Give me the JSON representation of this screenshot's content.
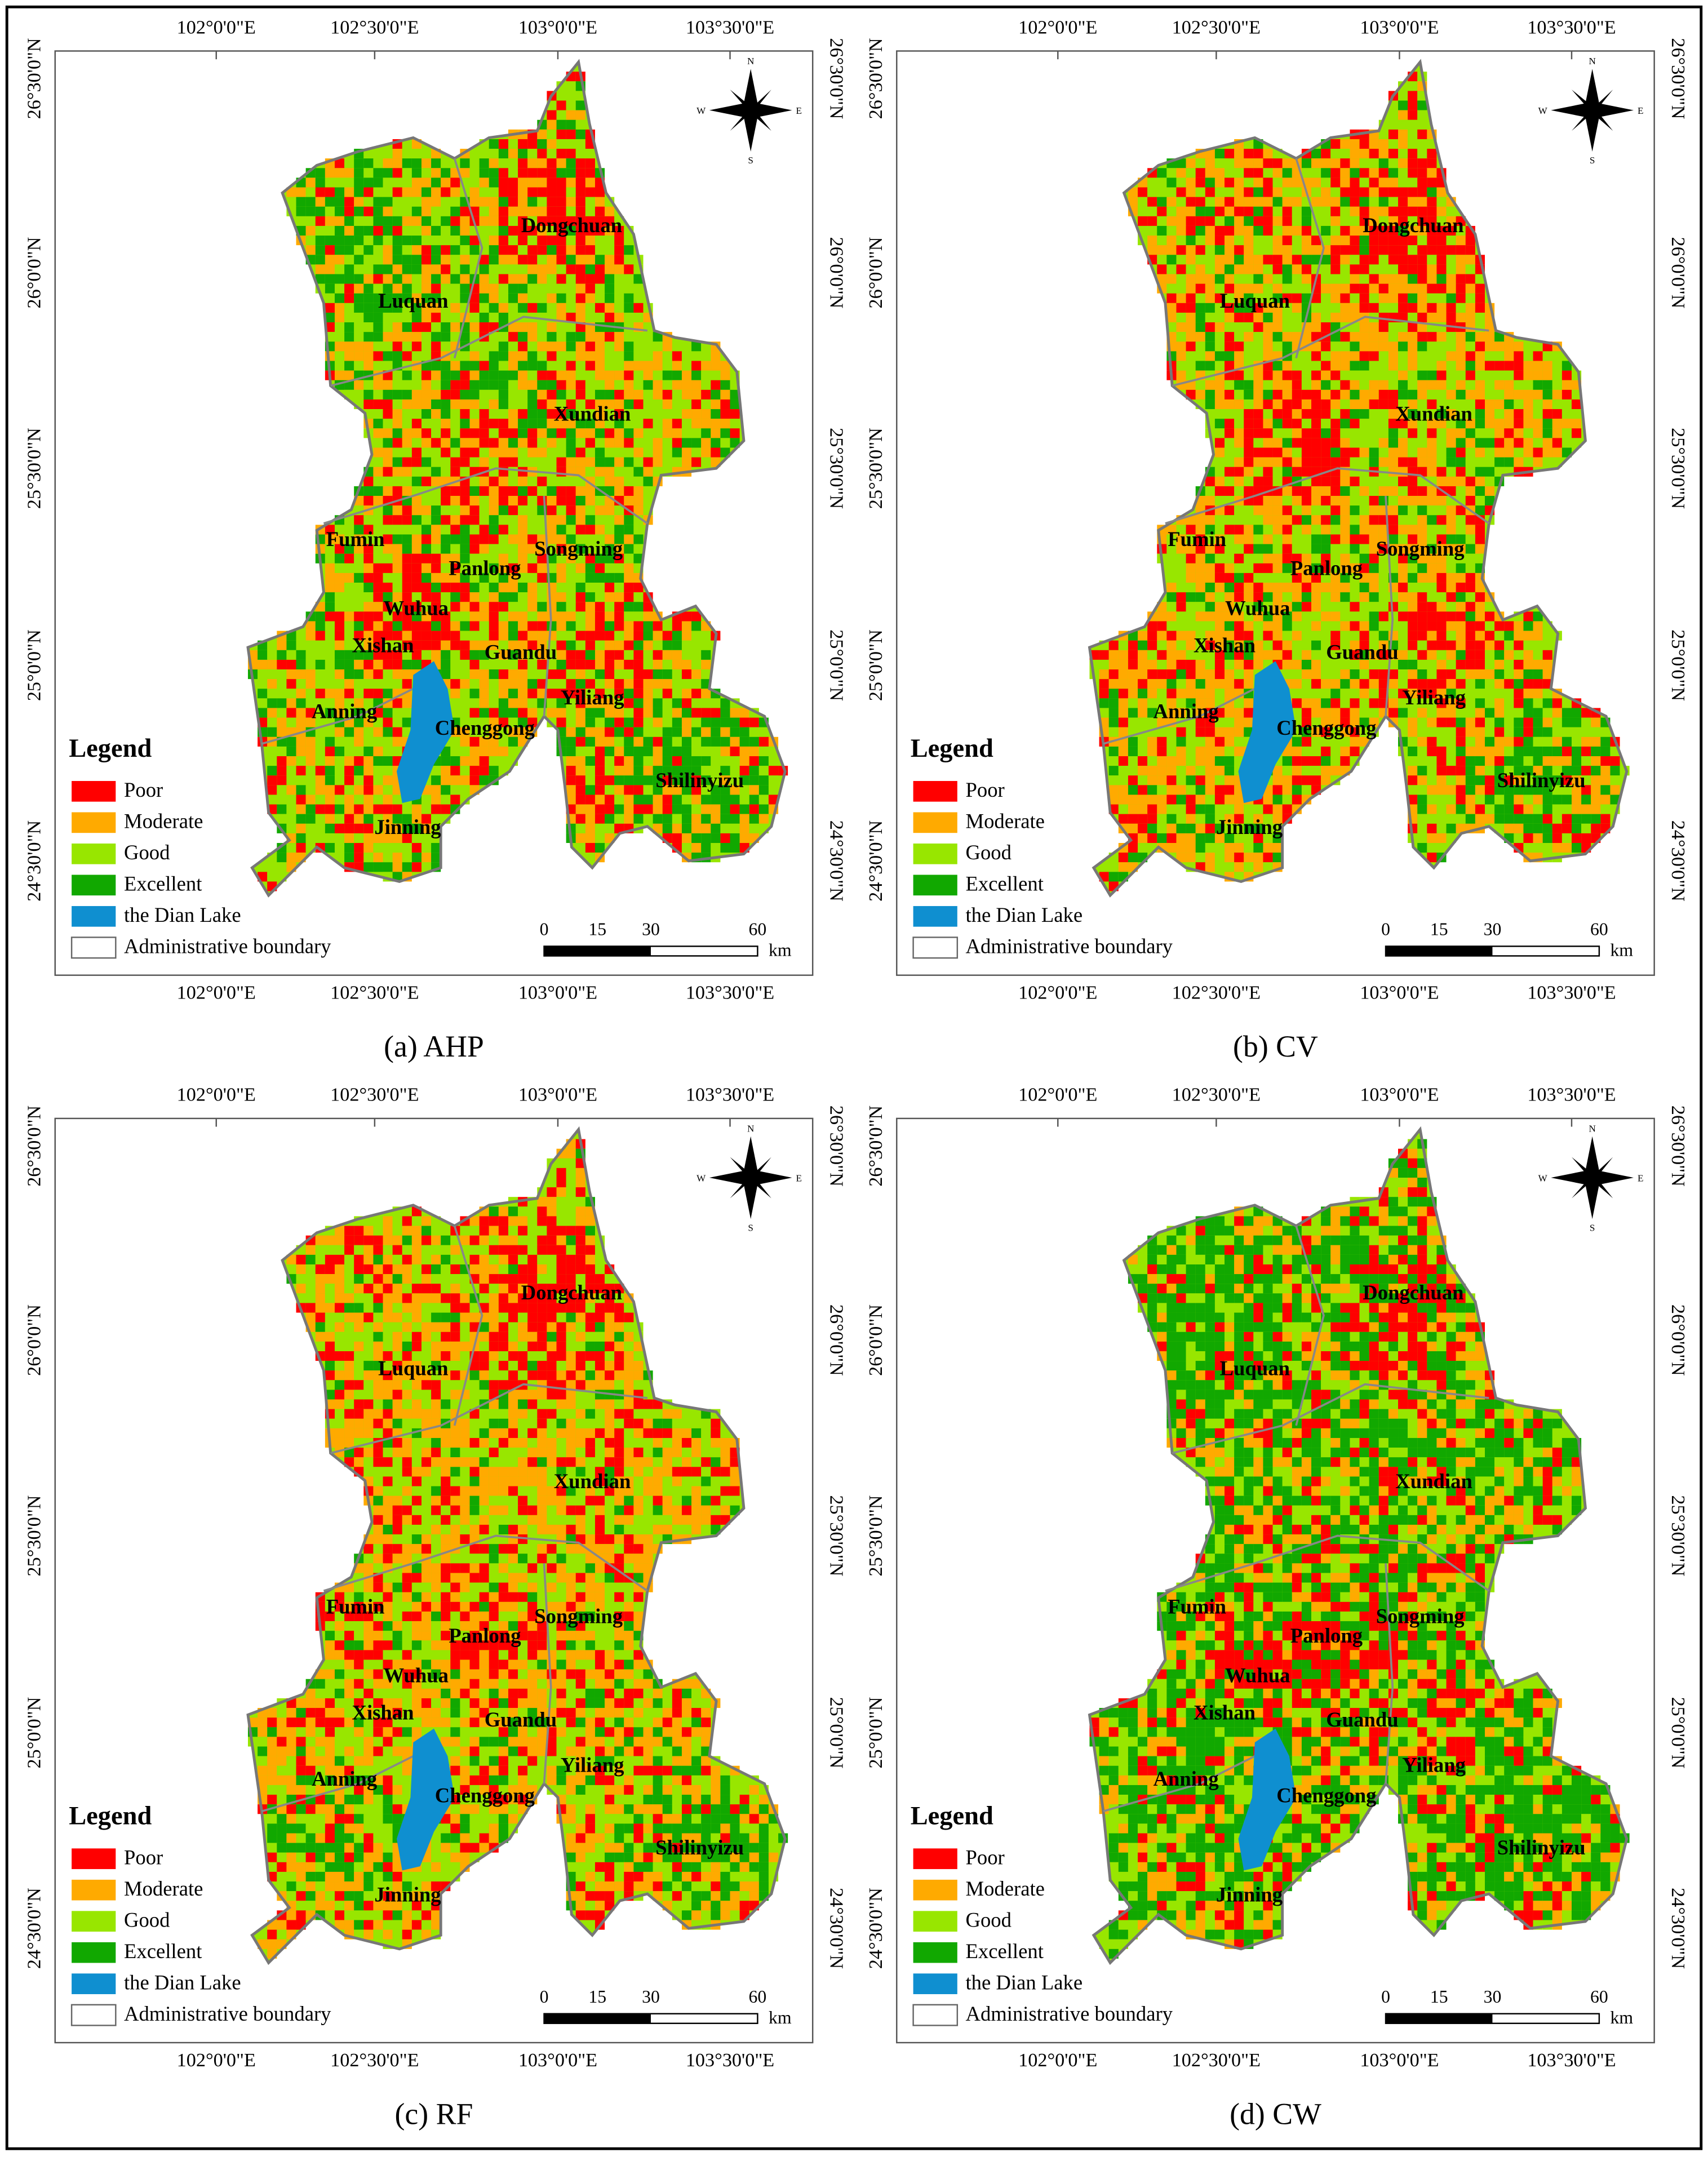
{
  "panels": [
    {
      "caption": "(a) AHP"
    },
    {
      "caption": "(b) CV"
    },
    {
      "caption": "(c) RF"
    },
    {
      "caption": "(d) CW"
    }
  ],
  "lon_labels": [
    "102°0'0\"E",
    "102°30'0\"E",
    "103°0'0\"E",
    "103°30'0\"E"
  ],
  "lat_labels": [
    "26°30'0\"N",
    "26°0'0\"N",
    "25°30'0\"N",
    "25°0'0\"N",
    "24°30'0\"N"
  ],
  "districts": [
    "Dongchuan",
    "Luquan",
    "Xundian",
    "Fumin",
    "Panlong",
    "Songming",
    "Wuhua",
    "Xishan",
    "Guandu",
    "Anning",
    "Chenggong",
    "Yiliang",
    "Shilinyizu",
    "Jinning"
  ],
  "legend": {
    "title": "Legend",
    "items": [
      {
        "label": "Poor",
        "color": "#ff0000"
      },
      {
        "label": "Moderate",
        "color": "#ffaa00"
      },
      {
        "label": "Good",
        "color": "#98e600"
      },
      {
        "label": "Excellent",
        "color": "#11a800"
      },
      {
        "label": "the Dian Lake",
        "color": "#0f8fd0"
      },
      {
        "label": "Administrative boundary",
        "color": "#ffffff"
      }
    ]
  },
  "scale_bar": {
    "ticks": [
      0,
      15,
      30,
      60
    ],
    "unit": "km"
  },
  "compass": {
    "n": "N",
    "s": "S",
    "e": "E",
    "w": "W"
  }
}
